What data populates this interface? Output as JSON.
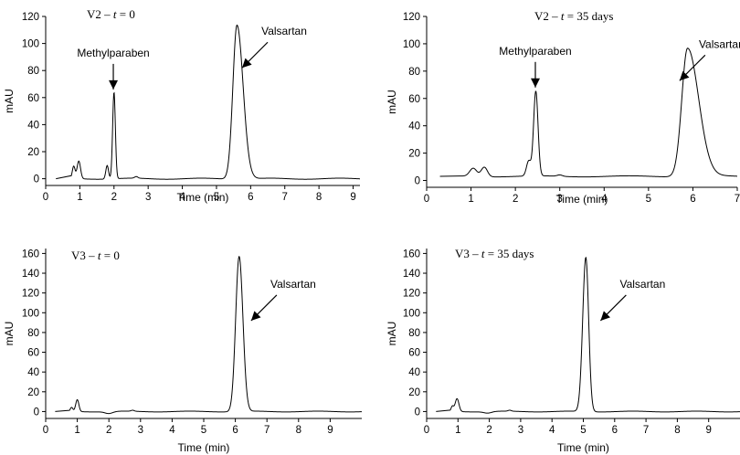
{
  "chart_data": [
    {
      "type": "line",
      "title": "V2 – t = 0",
      "title_parts": [
        "V2 – ",
        "t",
        " = 0"
      ],
      "xlabel": "Time (min)",
      "ylabel": "mAU",
      "xlim": [
        0,
        9.2
      ],
      "ylim": [
        -5,
        120
      ],
      "xticks": [
        0,
        1,
        2,
        3,
        4,
        5,
        6,
        7,
        8,
        9
      ],
      "yticks": [
        0,
        20,
        40,
        60,
        80,
        100,
        120
      ],
      "baseline": 0,
      "peaks": [
        {
          "center": 0.82,
          "height": 9,
          "width": 0.04
        },
        {
          "center": 0.97,
          "height": 13,
          "width": 0.05
        },
        {
          "center": 1.8,
          "height": 10,
          "width": 0.04
        },
        {
          "center": 2.0,
          "height": 64,
          "width": 0.04
        },
        {
          "center": 2.65,
          "height": 1.2,
          "width": 0.05
        },
        {
          "center": 5.6,
          "height": 114,
          "width": 0.12,
          "tail": 0.18
        }
      ],
      "annotations": [
        {
          "text": "Methylparaben",
          "target_x": 1.98,
          "target_y": 66,
          "style": "down"
        },
        {
          "text": "Valsartan",
          "target_x": 5.75,
          "target_y": 82,
          "style": "diag"
        }
      ]
    },
    {
      "type": "line",
      "title": "V2 – t = 35 days",
      "title_parts": [
        "V2 – ",
        "t",
        " = 35 days"
      ],
      "xlabel": "Time (min)",
      "ylabel": "mAU",
      "xlim": [
        0,
        7
      ],
      "ylim": [
        -5,
        120
      ],
      "xticks": [
        0,
        1,
        2,
        3,
        4,
        5,
        6,
        7
      ],
      "yticks": [
        0,
        20,
        40,
        60,
        80,
        100,
        120
      ],
      "baseline": 3,
      "peaks": [
        {
          "center": 1.05,
          "height": 6,
          "width": 0.08
        },
        {
          "center": 1.3,
          "height": 7,
          "width": 0.07
        },
        {
          "center": 2.3,
          "height": 11,
          "width": 0.05
        },
        {
          "center": 2.46,
          "height": 62,
          "width": 0.05
        },
        {
          "center": 3.0,
          "height": 1,
          "width": 0.06
        },
        {
          "center": 5.88,
          "height": 94,
          "width": 0.13,
          "tail": 0.25
        }
      ],
      "annotations": [
        {
          "text": "Methylparaben",
          "target_x": 2.45,
          "target_y": 68,
          "style": "down"
        },
        {
          "text": "Valsartan",
          "target_x": 5.7,
          "target_y": 73,
          "style": "diag"
        }
      ]
    },
    {
      "type": "line",
      "title": "V3 – t = 0",
      "title_parts": [
        "V3 – ",
        "t",
        " = 0"
      ],
      "xlabel": "Time (min)",
      "ylabel": "mAU",
      "xlim": [
        0,
        10
      ],
      "ylim": [
        -7,
        165
      ],
      "xticks": [
        0,
        1,
        2,
        3,
        4,
        5,
        6,
        7,
        8,
        9
      ],
      "yticks": [
        0,
        20,
        40,
        60,
        80,
        100,
        120,
        140,
        160
      ],
      "baseline": 0,
      "peaks": [
        {
          "center": 0.82,
          "height": 4,
          "width": 0.04
        },
        {
          "center": 1.0,
          "height": 12,
          "width": 0.05
        },
        {
          "center": 2.0,
          "height": -2,
          "width": 0.12
        },
        {
          "center": 2.75,
          "height": 1,
          "width": 0.05
        },
        {
          "center": 6.12,
          "height": 157,
          "width": 0.11,
          "tail": 0.12
        }
      ],
      "annotations": [
        {
          "text": "Valsartan",
          "target_x": 6.5,
          "target_y": 92,
          "style": "diag"
        }
      ]
    },
    {
      "type": "line",
      "title": "V3 – t = 35 days",
      "title_parts": [
        "V3 – ",
        "t",
        " = 35 days"
      ],
      "xlabel": "Time (min)",
      "ylabel": "mAU",
      "xlim": [
        0,
        10
      ],
      "ylim": [
        -7,
        165
      ],
      "xticks": [
        0,
        1,
        2,
        3,
        4,
        5,
        6,
        7,
        8,
        9
      ],
      "yticks": [
        0,
        20,
        40,
        60,
        80,
        100,
        120,
        140,
        160
      ],
      "baseline": 0,
      "peaks": [
        {
          "center": 0.82,
          "height": 5,
          "width": 0.04
        },
        {
          "center": 0.97,
          "height": 13,
          "width": 0.06
        },
        {
          "center": 1.95,
          "height": -1.5,
          "width": 0.12
        },
        {
          "center": 2.65,
          "height": 1,
          "width": 0.05
        },
        {
          "center": 5.08,
          "height": 156,
          "width": 0.1,
          "tail": 0.09
        }
      ],
      "annotations": [
        {
          "text": "Valsartan",
          "target_x": 5.55,
          "target_y": 92,
          "style": "diag"
        }
      ]
    }
  ]
}
